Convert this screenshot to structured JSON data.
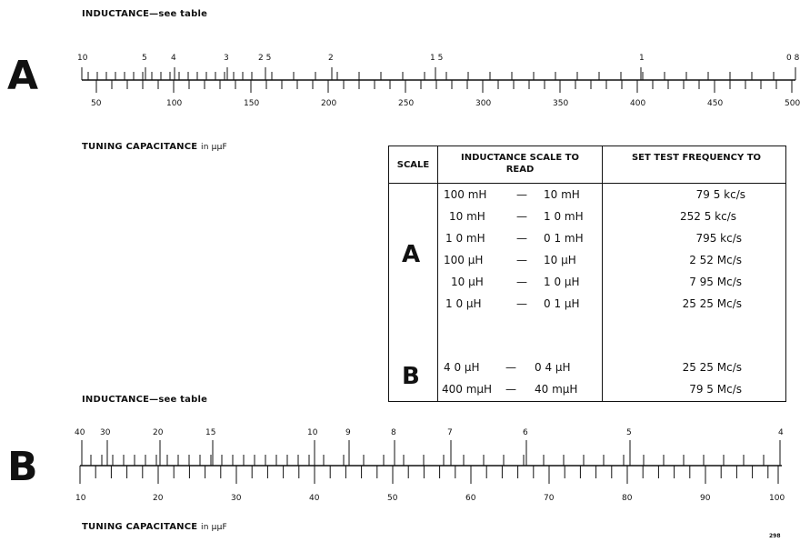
{
  "scale_a": {
    "letter": "A",
    "inductance_label": "INDUCTANCE—see table",
    "capacitance_label": "TUNING CAPACITANCE",
    "capacitance_unit": "in µµF",
    "top_ticks": [
      "10",
      "5",
      "4",
      "3",
      "2 5",
      "2",
      "1 5",
      "1",
      "0 8"
    ],
    "bottom_ticks": [
      "50",
      "100",
      "150",
      "200",
      "250",
      "300",
      "350",
      "400",
      "450",
      "500"
    ]
  },
  "table": {
    "headers": {
      "scale": "SCALE",
      "inductance": "INDUCTANCE SCALE TO READ",
      "frequency": "SET TEST FREQUENCY TO"
    },
    "groups": [
      {
        "scale": "A",
        "rows": [
          {
            "low": "100 mH",
            "high": "10 mH",
            "freq": "79 5 kc/s"
          },
          {
            "low": "10 mH",
            "high": "1 0 mH",
            "freq": "252 5 kc/s"
          },
          {
            "low": "1 0 mH",
            "high": "0 1 mH",
            "freq": "795 kc/s"
          },
          {
            "low": "100 µH",
            "high": "10 µH",
            "freq": "2 52 Mc/s"
          },
          {
            "low": "10 µH",
            "high": "1 0 µH",
            "freq": "7 95 Mc/s"
          },
          {
            "low": "1 0 µH",
            "high": "0 1 µH",
            "freq": "25 25 Mc/s"
          }
        ]
      },
      {
        "scale": "B",
        "rows": [
          {
            "low": "4 0 µH",
            "high": "0 4 µH",
            "freq": "25 25 Mc/s"
          },
          {
            "low": "400 mµH",
            "high": "40 mµH",
            "freq": "79 5 Mc/s"
          }
        ]
      }
    ],
    "dash": "—"
  },
  "scale_b": {
    "letter": "B",
    "inductance_label": "INDUCTANCE—see table",
    "capacitance_label": "TUNING CAPACITANCE",
    "capacitance_unit": "in µµF",
    "top_ticks": [
      "40",
      "30",
      "20",
      "15",
      "10",
      "9",
      "8",
      "7",
      "6",
      "5",
      "4"
    ],
    "bottom_ticks": [
      "10",
      "20",
      "30",
      "40",
      "50",
      "60",
      "70",
      "80",
      "90",
      "100"
    ]
  },
  "page_number": "298"
}
